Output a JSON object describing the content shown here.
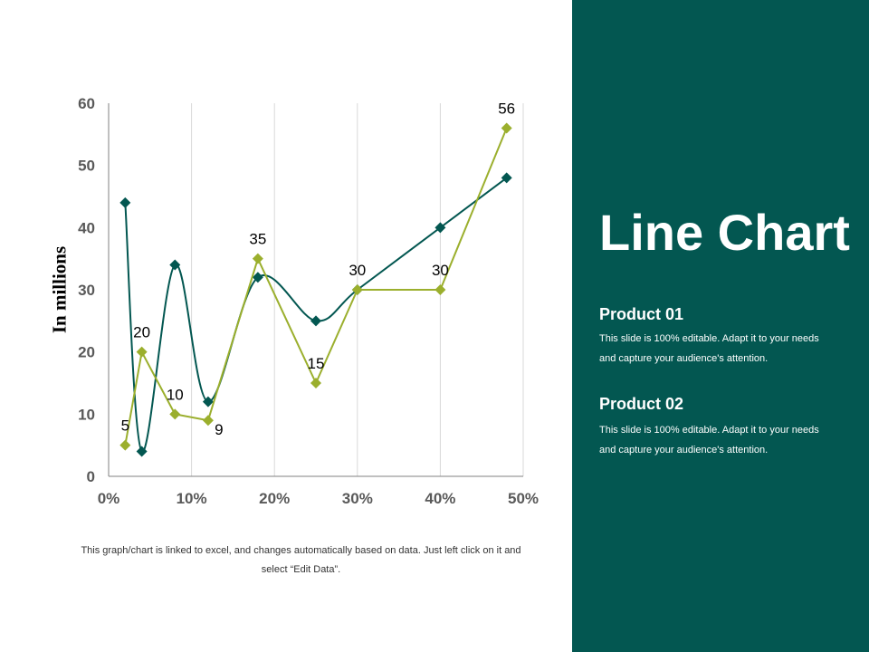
{
  "chart_data": {
    "type": "line",
    "ylabel": "In millions",
    "xlabel": "",
    "xlim": [
      0,
      50
    ],
    "ylim": [
      0,
      60
    ],
    "x_ticks": [
      "0%",
      "10%",
      "20%",
      "30%",
      "40%",
      "50%"
    ],
    "y_ticks": [
      "0",
      "10",
      "20",
      "30",
      "40",
      "50",
      "60"
    ],
    "grid": "vertical",
    "series": [
      {
        "color": "#9BAF2D",
        "smooth": false,
        "show_labels": true,
        "points": [
          {
            "x": 2,
            "y": 5
          },
          {
            "x": 4,
            "y": 20
          },
          {
            "x": 8,
            "y": 10
          },
          {
            "x": 12,
            "y": 9
          },
          {
            "x": 18,
            "y": 35
          },
          {
            "x": 25,
            "y": 15
          },
          {
            "x": 30,
            "y": 30
          },
          {
            "x": 40,
            "y": 30
          },
          {
            "x": 48,
            "y": 56
          }
        ]
      },
      {
        "color": "#035751",
        "smooth": true,
        "show_labels": false,
        "points": [
          {
            "x": 2,
            "y": 44
          },
          {
            "x": 4,
            "y": 4
          },
          {
            "x": 8,
            "y": 34
          },
          {
            "x": 12,
            "y": 12
          },
          {
            "x": 18,
            "y": 32
          },
          {
            "x": 25,
            "y": 25
          },
          {
            "x": 30,
            "y": 30
          },
          {
            "x": 40,
            "y": 40
          },
          {
            "x": 48,
            "y": 48
          }
        ]
      }
    ]
  },
  "footnote": "This graph/chart is linked to excel, and changes automatically based on data. Just left click on it and select “Edit Data”.",
  "panel": {
    "title": "Line Chart",
    "background": "#035751",
    "products": [
      {
        "heading": "Product 01",
        "description": "This slide is 100% editable. Adapt it to your needs and capture your audience's attention."
      },
      {
        "heading": "Product 02",
        "description": "This slide is 100% editable. Adapt it to your needs and capture your audience's attention."
      }
    ]
  }
}
